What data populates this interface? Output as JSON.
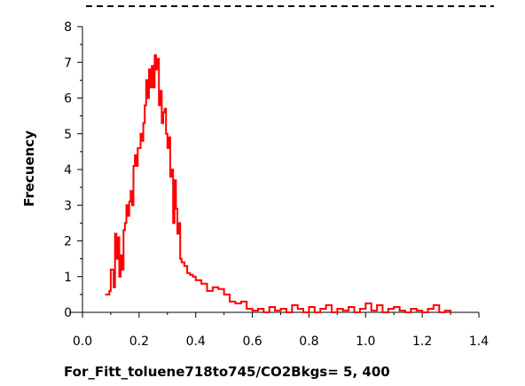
{
  "chart_data": {
    "type": "line",
    "xlabel": "For_Fitt_toluene718to745/CO2Bkgs= 5, 400",
    "ylabel": "Frecuency",
    "xlim": [
      0.0,
      1.4
    ],
    "ylim": [
      0,
      8
    ],
    "xticks": [
      "0.0",
      "0.2",
      "0.4",
      "0.6",
      "0.8",
      "1.0",
      "1.2",
      "1.4"
    ],
    "yticks": [
      "0",
      "1",
      "2",
      "3",
      "4",
      "5",
      "6",
      "7",
      "8"
    ],
    "grid": false,
    "line_color": "#ff0000",
    "series": [
      {
        "x": [
          0.08,
          0.095,
          0.1,
          0.11,
          0.115,
          0.12,
          0.125,
          0.13,
          0.135,
          0.14,
          0.145,
          0.15,
          0.155,
          0.16,
          0.165,
          0.17,
          0.175,
          0.18,
          0.185,
          0.19,
          0.195,
          0.2,
          0.205,
          0.21,
          0.215,
          0.22,
          0.225,
          0.23,
          0.235,
          0.24,
          0.245,
          0.25,
          0.255,
          0.26,
          0.265,
          0.27,
          0.275,
          0.28,
          0.285,
          0.29,
          0.295,
          0.3,
          0.305,
          0.31,
          0.315,
          0.32,
          0.325,
          0.33,
          0.335,
          0.34,
          0.345,
          0.35,
          0.36,
          0.37,
          0.38,
          0.39,
          0.4,
          0.42,
          0.44,
          0.46,
          0.48,
          0.5,
          0.52,
          0.54,
          0.56,
          0.58,
          0.6,
          0.62,
          0.64,
          0.66,
          0.68,
          0.7,
          0.72,
          0.74,
          0.76,
          0.78,
          0.8,
          0.82,
          0.84,
          0.86,
          0.88,
          0.9,
          0.92,
          0.94,
          0.96,
          0.98,
          1.0,
          1.02,
          1.04,
          1.06,
          1.08,
          1.1,
          1.12,
          1.14,
          1.16,
          1.18,
          1.2,
          1.22,
          1.24,
          1.26,
          1.28,
          1.3
        ],
        "y": [
          0.5,
          0.6,
          1.2,
          0.7,
          2.2,
          1.5,
          2.1,
          1.0,
          1.6,
          1.2,
          2.3,
          2.5,
          3.0,
          2.7,
          3.1,
          3.4,
          3.0,
          4.1,
          4.4,
          4.1,
          4.6,
          4.6,
          5.0,
          4.8,
          5.3,
          5.8,
          6.5,
          6.0,
          6.8,
          6.3,
          6.9,
          6.3,
          7.2,
          6.8,
          7.1,
          5.8,
          6.2,
          5.3,
          5.6,
          5.7,
          5.0,
          4.6,
          4.9,
          3.8,
          4.0,
          2.5,
          3.7,
          2.9,
          2.2,
          2.5,
          1.5,
          1.4,
          1.3,
          1.1,
          1.05,
          1.0,
          0.9,
          0.8,
          0.6,
          0.7,
          0.65,
          0.5,
          0.3,
          0.25,
          0.3,
          0.1,
          0.05,
          0.1,
          0.0,
          0.15,
          0.05,
          0.1,
          0.0,
          0.2,
          0.1,
          0.0,
          0.15,
          0.0,
          0.1,
          0.2,
          0.0,
          0.1,
          0.05,
          0.15,
          0.0,
          0.1,
          0.25,
          0.05,
          0.2,
          0.0,
          0.1,
          0.15,
          0.05,
          0.0,
          0.1,
          0.05,
          0.0,
          0.1,
          0.2,
          0.0,
          0.05,
          0.0
        ]
      }
    ]
  }
}
